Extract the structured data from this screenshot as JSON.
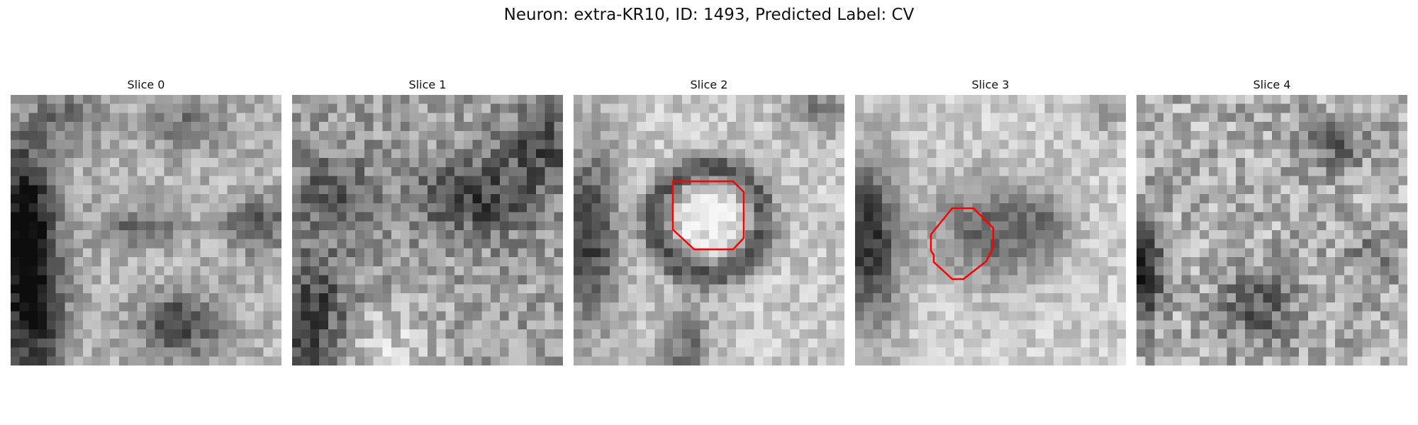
{
  "title": "Neuron: extra-KR10, ID: 1493, Predicted Label: CV",
  "panels": [
    {
      "label": "Slice 0"
    },
    {
      "label": "Slice 1"
    },
    {
      "label": "Slice 2"
    },
    {
      "label": "Slice 3"
    },
    {
      "label": "Slice 4"
    }
  ],
  "colors": {
    "contour": "#ff0000",
    "background": "#ffffff"
  }
}
